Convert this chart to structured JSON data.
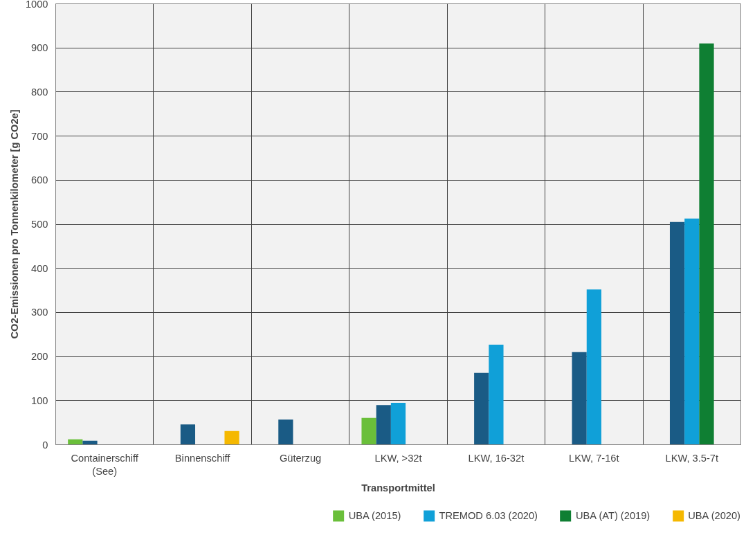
{
  "chart_data": {
    "type": "bar",
    "xlabel": "Transportmittel",
    "ylabel": "CO2-Emissionen pro Tonnenkilometer [g CO2e]",
    "categories": [
      "Containerschiff (See)",
      "Binnenschiff",
      "Güterzug",
      "LKW, >32t",
      "LKW, 16-32t",
      "LKW, 7-16t",
      "LKW, 3.5-7t"
    ],
    "series": [
      {
        "name": "UBA (2015)",
        "color": "#6abf3a",
        "values": [
          12,
          null,
          null,
          61,
          null,
          null,
          null
        ]
      },
      {
        "color": "#1a5b85",
        "values": [
          9,
          46,
          57,
          90,
          163,
          210,
          505
        ]
      },
      {
        "name": "TREMOD 6.03 (2020)",
        "color": "#10a0d8",
        "values": [
          null,
          null,
          null,
          95,
          227,
          352,
          513
        ]
      },
      {
        "name": "UBA (AT) (2019)",
        "color": "#0f7f33",
        "values": [
          null,
          null,
          null,
          null,
          null,
          null,
          910
        ]
      },
      {
        "name": "UBA (2020)",
        "color": "#f5b800",
        "values": [
          null,
          31,
          null,
          null,
          null,
          null,
          null
        ]
      }
    ],
    "ylim": [
      0,
      1000
    ],
    "yticks": [
      0,
      100,
      200,
      300,
      400,
      500,
      600,
      700,
      800,
      900,
      1000
    ],
    "grid": true,
    "legend": "bottom"
  }
}
